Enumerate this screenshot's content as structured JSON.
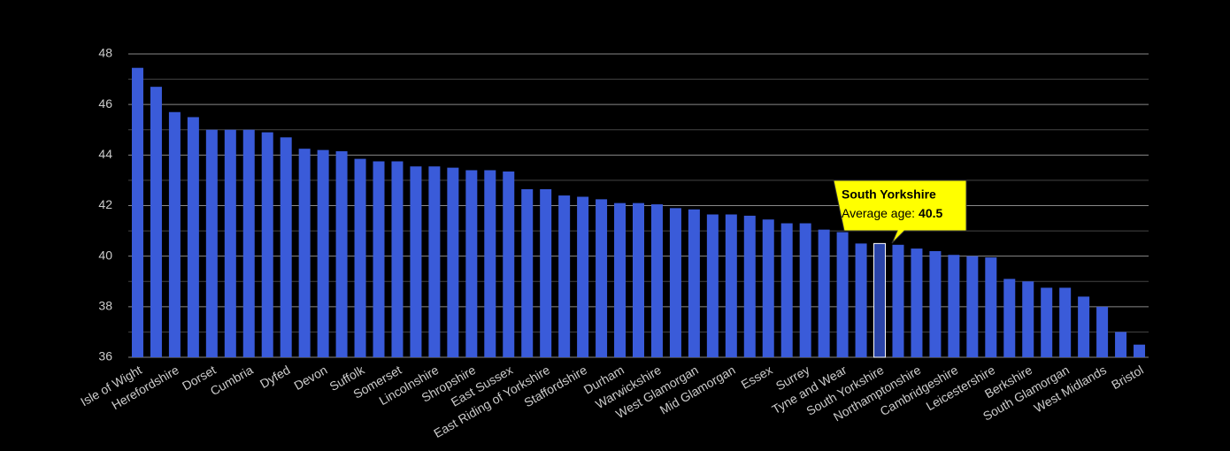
{
  "chart_data": {
    "type": "bar",
    "categories": [
      "Isle of Wight",
      null,
      "Herefordshire",
      null,
      "Dorset",
      null,
      "Cumbria",
      null,
      "Dyfed",
      null,
      "Devon",
      null,
      "Suffolk",
      null,
      "Somerset",
      null,
      "Lincolnshire",
      null,
      "Shropshire",
      null,
      "East Sussex",
      null,
      "East Riding of Yorkshire",
      null,
      "Staffordshire",
      null,
      "Durham",
      null,
      "Warwickshire",
      null,
      "West Glamorgan",
      null,
      "Mid Glamorgan",
      null,
      "Essex",
      null,
      "Surrey",
      null,
      "Tyne and Wear",
      null,
      "South Yorkshire",
      null,
      "Northamptonshire",
      null,
      "Cambridgeshire",
      null,
      "Leicestershire",
      null,
      "Berkshire",
      null,
      "South Glamorgan",
      null,
      "West Midlands",
      null,
      "Bristol"
    ],
    "values": [
      47.45,
      46.7,
      45.7,
      45.5,
      45.0,
      45.0,
      45.0,
      44.9,
      44.7,
      44.25,
      44.2,
      44.15,
      43.85,
      43.75,
      43.75,
      43.55,
      43.55,
      43.5,
      43.4,
      43.4,
      43.35,
      42.65,
      42.65,
      42.4,
      42.35,
      42.25,
      42.1,
      42.1,
      42.05,
      41.9,
      41.85,
      41.65,
      41.65,
      41.6,
      41.45,
      41.3,
      41.3,
      41.05,
      40.95,
      40.5,
      40.5,
      40.45,
      40.3,
      40.2,
      40.05,
      40.0,
      39.95,
      39.1,
      39.0,
      38.75,
      38.75,
      38.4,
      38.0,
      37.0,
      36.5
    ],
    "color": "#3a5bd9",
    "highlight_index": 40,
    "tooltip": {
      "label": "Average age:"
    },
    "ylim": [
      36,
      48
    ],
    "yticks": [
      36,
      38,
      40,
      42,
      44,
      46,
      48
    ],
    "minor_yticks": [
      37,
      39,
      41,
      43,
      45,
      47
    ],
    "grid": true
  }
}
